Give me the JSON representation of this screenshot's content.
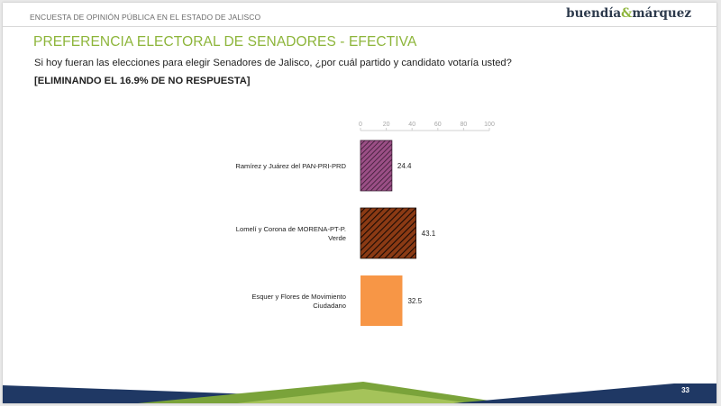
{
  "header": {
    "survey_title": "ENCUESTA DE OPINIÓN PÚBLICA EN EL ESTADO DE JALISCO",
    "brand_left": "buendía",
    "brand_amp": "&",
    "brand_right": "márquez"
  },
  "slide": {
    "title": "PREFERENCIA ELECTORAL DE SENADORES - EFECTIVA",
    "question": "Si hoy fueran las elecciones para elegir Senadores de Jalisco, ¿por cuál partido y candidato votaría usted?",
    "note": "[ELIMINANDO EL 16.9% DE NO RESPUESTA]",
    "page_number": "33"
  },
  "colors": {
    "title_green": "#8db53a",
    "navy": "#1f3864",
    "bar_1": "#9b4f86",
    "bar_2": "#8b3a14",
    "bar_3": "#f79646"
  },
  "chart_data": {
    "type": "bar",
    "orientation": "horizontal",
    "categories": [
      "Ramírez y Juárez del PAN-PRI-PRD",
      "Lomelí y Corona de MORENA-PT-P. Verde",
      "Esquer y Flores de Movimiento Ciudadano"
    ],
    "category_lines": [
      [
        "Ramírez y Juárez del PAN-PRI-PRD"
      ],
      [
        "Lomelí y Corona de MORENA-PT-P.",
        "Verde"
      ],
      [
        "Esquer y Flores de Movimiento",
        "Ciudadano"
      ]
    ],
    "values": [
      24.4,
      43.1,
      32.5
    ],
    "value_labels": [
      "24.4",
      "43.1",
      "32.5"
    ],
    "bar_fills": [
      "hatched",
      "hatched",
      "solid"
    ],
    "xlim": [
      0,
      100
    ],
    "xticks": [
      "0",
      "20",
      "40",
      "60",
      "80",
      "100"
    ],
    "axis_position": "top",
    "grid": false,
    "legend": "none"
  }
}
